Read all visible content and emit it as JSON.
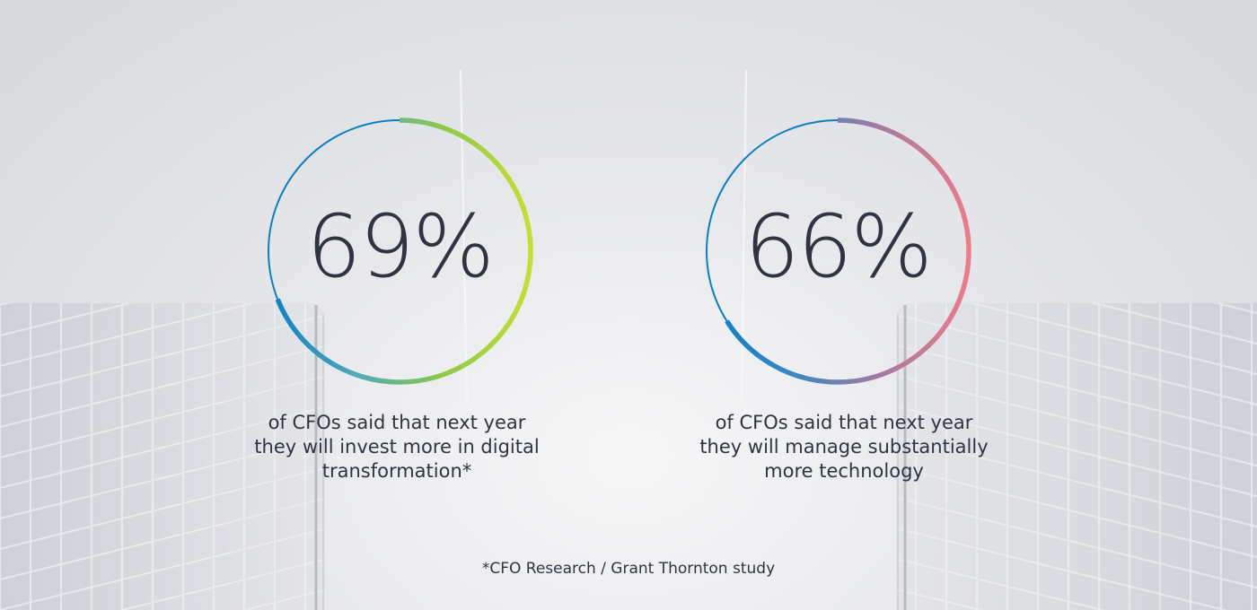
{
  "stats": [
    {
      "value": "69%",
      "percent": 69,
      "caption_lines": [
        "of CFOs said that next year",
        "they will invest more in digital",
        "transformation*"
      ],
      "gradient": [
        "#0a7fc4",
        "#4fa9b8",
        "#8dc94a",
        "#c6df2f"
      ]
    },
    {
      "value": "66%",
      "percent": 66,
      "caption_lines": [
        "of CFOs said that next year",
        "they will manage substantially",
        "more technology"
      ],
      "gradient": [
        "#0a7fc4",
        "#3b88c2",
        "#a77aa0",
        "#ee7b8a"
      ]
    }
  ],
  "footnote": "*CFO Research / Grant Thornton study",
  "colors": {
    "text": "#2f3440",
    "ring_base": "#0a7fc4",
    "background": "#e3e4e7"
  }
}
